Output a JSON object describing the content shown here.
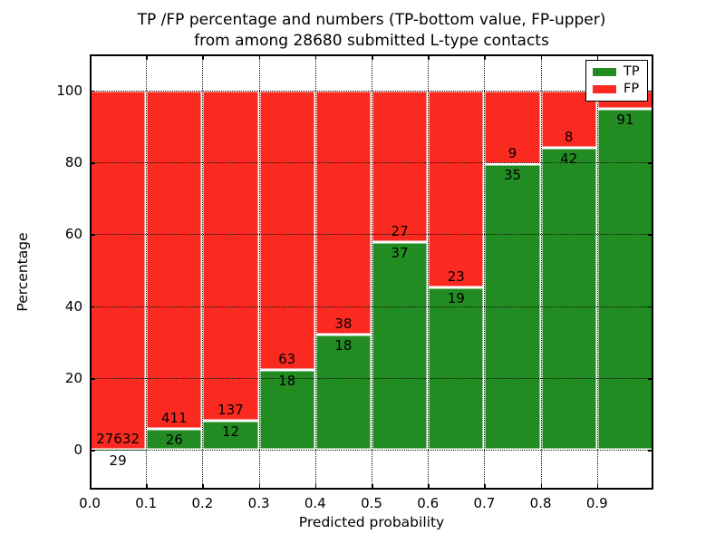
{
  "title": {
    "line1": "TP /FP percentage and numbers (TP-bottom value, FP-upper)",
    "line2": "from among 28680 submitted L-type contacts"
  },
  "axes": {
    "xlabel": "Predicted probability",
    "ylabel": "Percentage",
    "x_tick_labels": [
      "0.0",
      "0.1",
      "0.2",
      "0.3",
      "0.4",
      "0.5",
      "0.6",
      "0.7",
      "0.8",
      "0.9"
    ],
    "y_tick_labels": [
      "0",
      "20",
      "40",
      "60",
      "80",
      "100"
    ],
    "y_tick_values": [
      0,
      20,
      40,
      60,
      80,
      100
    ],
    "xlim": [
      0.0,
      1.0
    ],
    "ylim": [
      -11,
      110
    ],
    "grid_style": "dotted"
  },
  "legend": {
    "position": "upper right",
    "items": [
      {
        "label": "TP",
        "color": "#228c22"
      },
      {
        "label": "FP",
        "color": "#fb2a20"
      }
    ]
  },
  "colors": {
    "tp_green": "#228c22",
    "fp_red": "#fb2a20",
    "bar_edge": "#ffffff",
    "grid": "#111111",
    "background": "#ffffff"
  },
  "chart_data": {
    "type": "bar",
    "stacked": true,
    "title": "TP /FP percentage and numbers (TP-bottom value, FP-upper) from among 28680 submitted L-type contacts",
    "xlabel": "Predicted probability",
    "ylabel": "Percentage",
    "total_submitted": 28680,
    "bin_width": 0.1,
    "bins": [
      {
        "range": "0.0-0.1",
        "tp": 29,
        "fp": 27632,
        "tp_pct": 0.1,
        "fp_label": "27632",
        "tp_label": "29",
        "fp_label_visible": true
      },
      {
        "range": "0.1-0.2",
        "tp": 26,
        "fp": 411,
        "tp_pct": 5.9,
        "fp_label": "411",
        "tp_label": "26",
        "fp_label_visible": true
      },
      {
        "range": "0.2-0.3",
        "tp": 12,
        "fp": 137,
        "tp_pct": 8.1,
        "fp_label": "137",
        "tp_label": "12",
        "fp_label_visible": true
      },
      {
        "range": "0.3-0.4",
        "tp": 18,
        "fp": 63,
        "tp_pct": 22.2,
        "fp_label": "63",
        "tp_label": "18",
        "fp_label_visible": true
      },
      {
        "range": "0.4-0.5",
        "tp": 18,
        "fp": 38,
        "tp_pct": 32.1,
        "fp_label": "38",
        "tp_label": "18",
        "fp_label_visible": true
      },
      {
        "range": "0.5-0.6",
        "tp": 37,
        "fp": 27,
        "tp_pct": 57.8,
        "fp_label": "27",
        "tp_label": "37",
        "fp_label_visible": true
      },
      {
        "range": "0.6-0.7",
        "tp": 19,
        "fp": 23,
        "tp_pct": 45.2,
        "fp_label": "23",
        "tp_label": "19",
        "fp_label_visible": true
      },
      {
        "range": "0.7-0.8",
        "tp": 35,
        "fp": 9,
        "tp_pct": 79.5,
        "fp_label": "9",
        "tp_label": "35",
        "fp_label_visible": true
      },
      {
        "range": "0.8-0.9",
        "tp": 42,
        "fp": 8,
        "tp_pct": 84.0,
        "fp_label": "8",
        "tp_label": "42",
        "fp_label_visible": true
      },
      {
        "range": "0.9-1.0",
        "tp": 91,
        "fp": 5,
        "tp_pct": 94.8,
        "fp_label": "",
        "tp_label": "91",
        "fp_label_visible": false
      }
    ],
    "series": [
      {
        "name": "TP",
        "values": [
          29,
          26,
          12,
          18,
          18,
          37,
          19,
          35,
          42,
          91
        ]
      },
      {
        "name": "FP",
        "values": [
          27632,
          411,
          137,
          63,
          38,
          27,
          23,
          9,
          8,
          5
        ]
      }
    ],
    "legend_position": "upper right",
    "grid": true
  }
}
